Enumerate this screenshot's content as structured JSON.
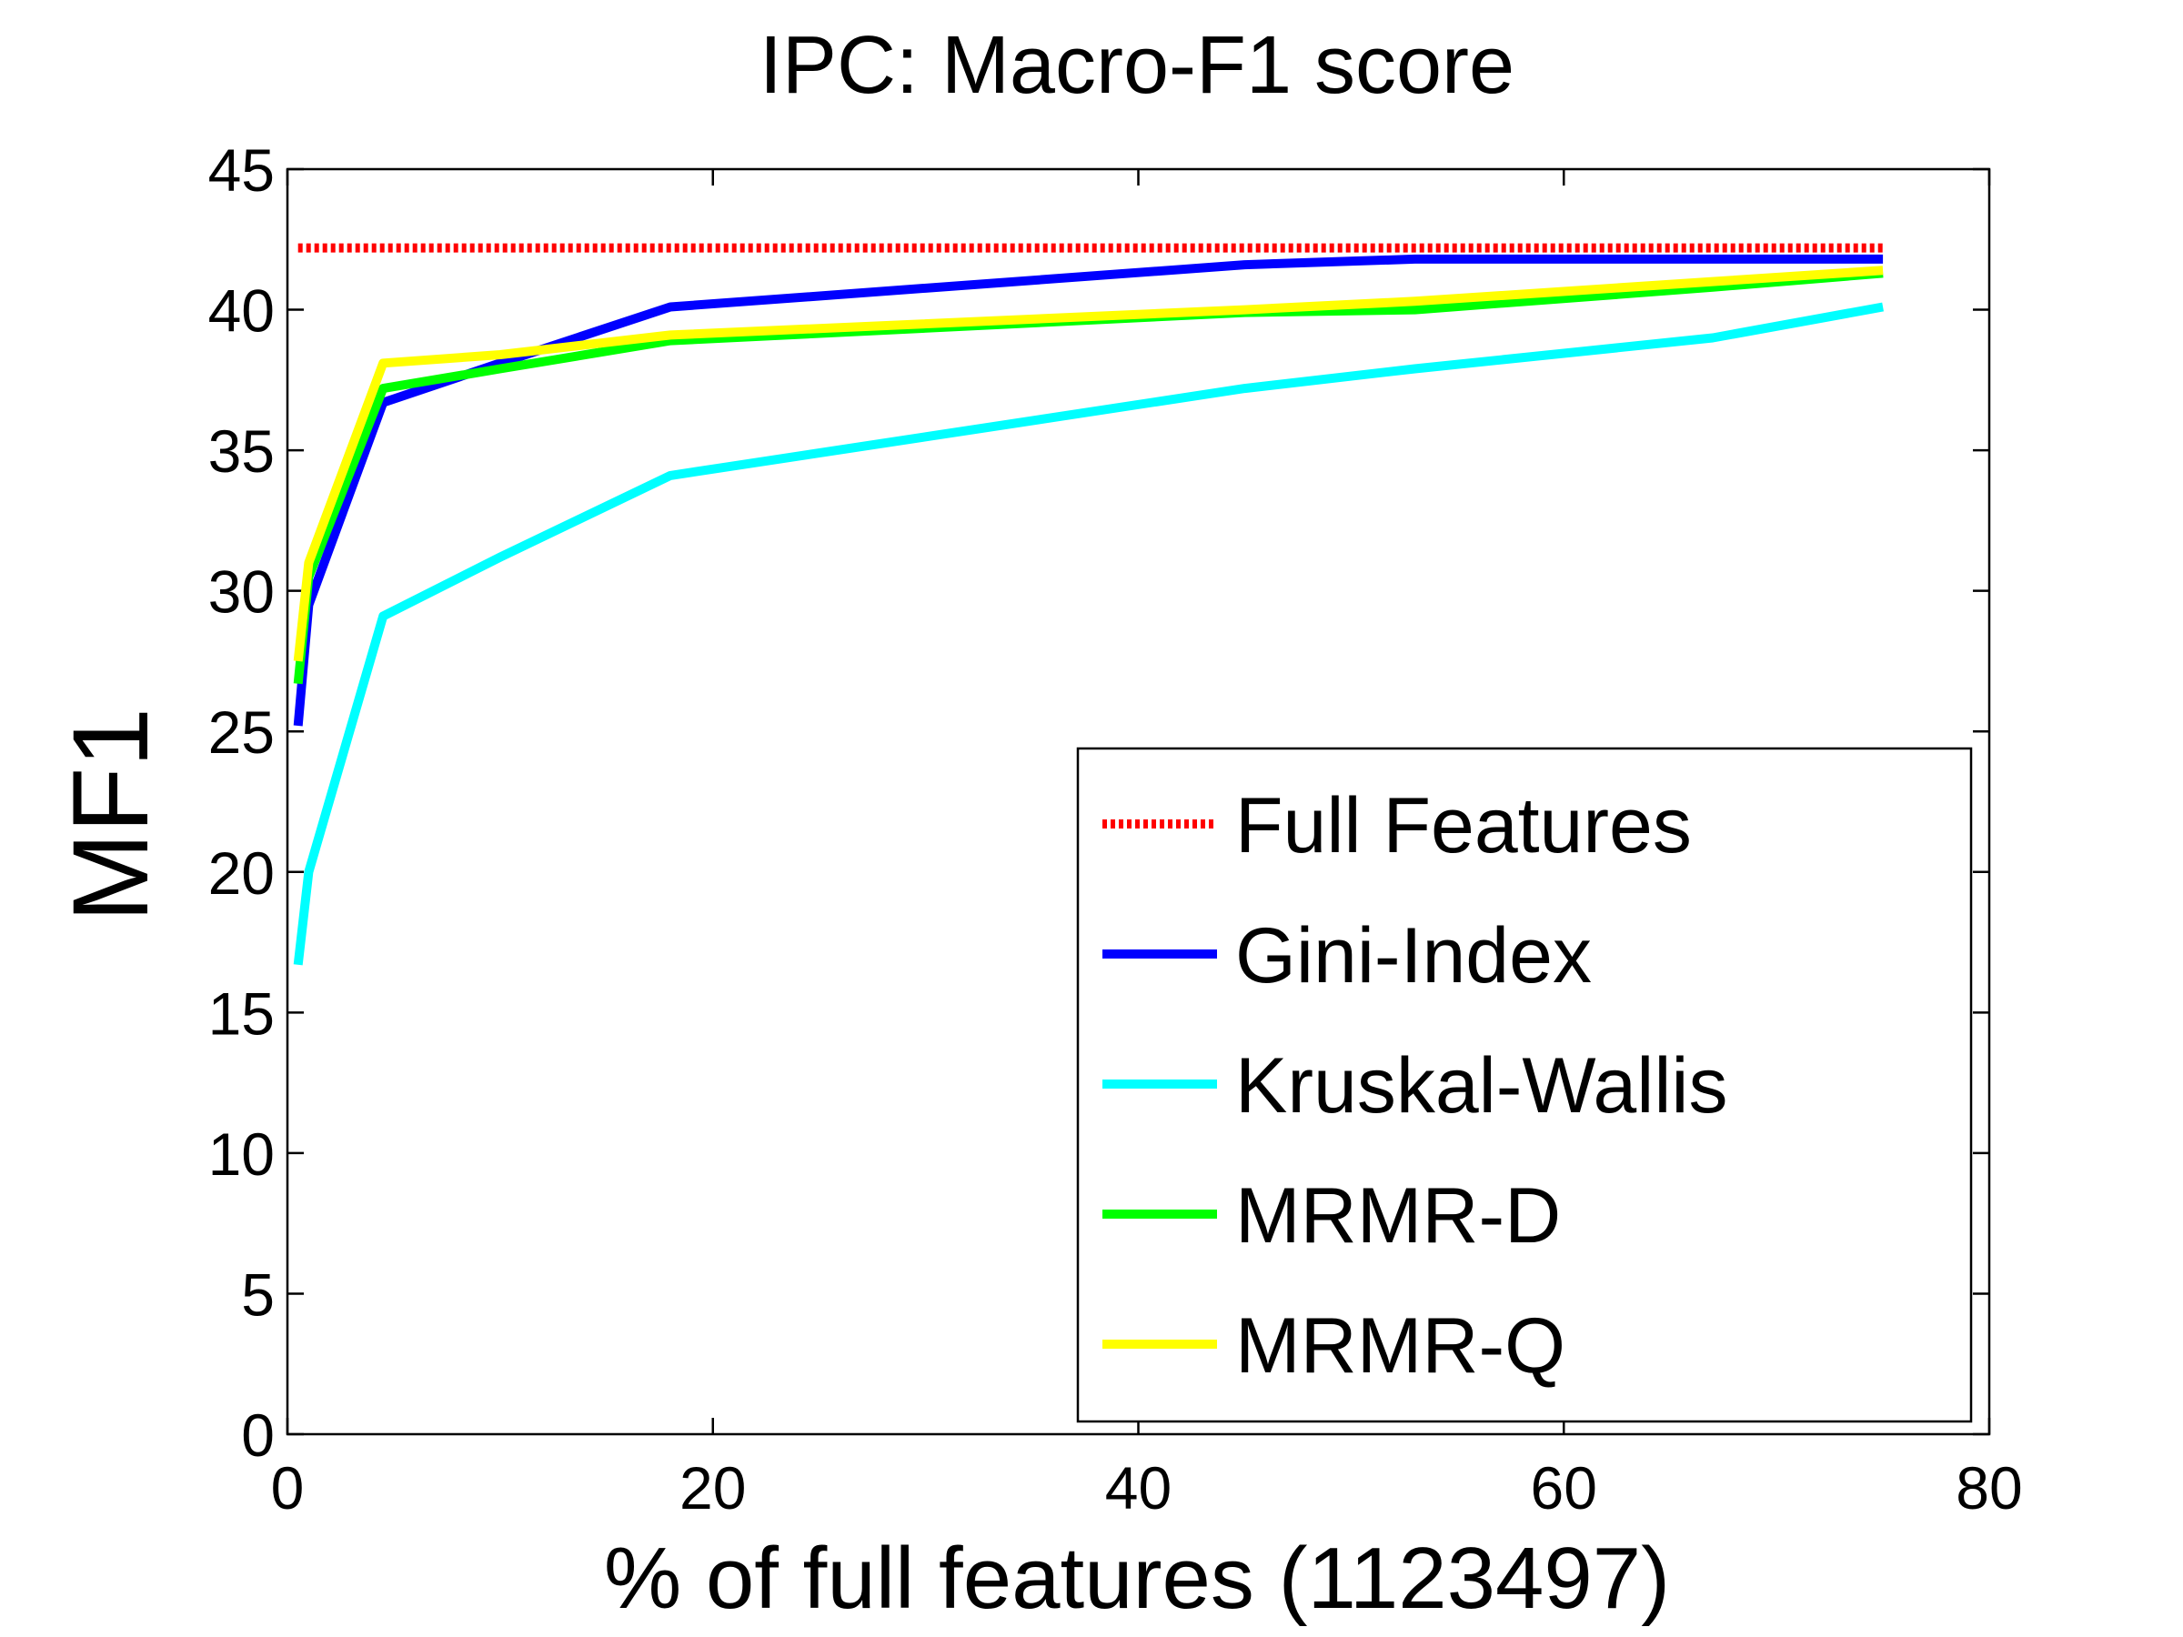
{
  "chart_data": {
    "type": "line",
    "title": "IPC: Macro-F1 score",
    "xlabel": "% of full features (1123497)",
    "ylabel": "MF1",
    "xlim": [
      0,
      80
    ],
    "ylim": [
      0,
      45
    ],
    "xticks": [
      0,
      20,
      40,
      60,
      80
    ],
    "yticks": [
      0,
      5,
      10,
      15,
      20,
      25,
      30,
      35,
      40,
      45
    ],
    "grid": false,
    "legend_position": "bottom-right",
    "series": [
      {
        "name": "Full Features",
        "color": "#ff0000",
        "style": "dotted",
        "x": [
          0.5,
          75
        ],
        "y": [
          42.2,
          42.2
        ]
      },
      {
        "name": "Gini-Index",
        "color": "#0000ff",
        "style": "solid",
        "x": [
          0.5,
          1,
          4.5,
          10,
          18,
          45,
          53,
          67,
          75
        ],
        "y": [
          25.2,
          29.5,
          36.7,
          38.1,
          40.1,
          41.6,
          41.8,
          41.8,
          41.8
        ]
      },
      {
        "name": "Kruskal-Wallis",
        "color": "#00ffff",
        "style": "solid",
        "x": [
          0.5,
          1,
          4.5,
          10,
          18,
          45,
          53,
          67,
          75
        ],
        "y": [
          16.7,
          20.0,
          29.1,
          31.2,
          34.1,
          37.2,
          37.9,
          39.0,
          40.1
        ]
      },
      {
        "name": "MRMR-D",
        "color": "#00ff00",
        "style": "solid",
        "x": [
          0.5,
          1,
          4.5,
          10,
          18,
          45,
          53,
          67,
          75
        ],
        "y": [
          26.7,
          30.5,
          37.2,
          37.9,
          38.9,
          39.9,
          40.0,
          40.8,
          41.3
        ]
      },
      {
        "name": "MRMR-Q",
        "color": "#ffff00",
        "style": "solid",
        "x": [
          0.5,
          1,
          4.5,
          10,
          18,
          45,
          53,
          67,
          75
        ],
        "y": [
          27.5,
          31.0,
          38.1,
          38.4,
          39.1,
          40.0,
          40.3,
          41.0,
          41.4
        ]
      }
    ]
  }
}
